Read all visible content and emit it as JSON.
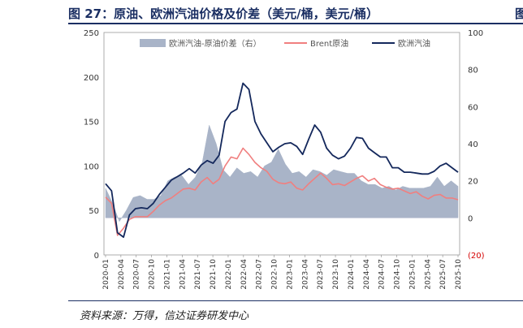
{
  "header": {
    "title": "图 27：原油、欧洲汽油价格及价差（美元/桶，美元/桶）",
    "right_mark": "图"
  },
  "footer": {
    "source": "资料来源：万得，信达证券研发中心"
  },
  "colors": {
    "spread": "#a9b4c8",
    "brent": "#f07f7f",
    "gasoline": "#14285c",
    "negative_label": "#d40000"
  },
  "chart_data": {
    "type": "line",
    "title": "",
    "legend_position": "top",
    "x_labels": [
      "2020-01",
      "2020-04",
      "2020-07",
      "2020-10",
      "2021-01",
      "2021-04",
      "2021-07",
      "2021-10",
      "2022-01",
      "2022-04",
      "2022-07",
      "2022-10",
      "2023-01",
      "2023-04",
      "2023-07",
      "2023-10",
      "2024-01",
      "2024-04",
      "2024-07",
      "2024-10",
      "2025-01",
      "2025-04",
      "2025-07",
      "2025-10"
    ],
    "y_left": {
      "min": 0,
      "max": 250,
      "ticks": [
        "0",
        "50",
        "100",
        "150",
        "200",
        "250"
      ]
    },
    "y_right": {
      "min": -20,
      "max": 100,
      "ticks": [
        "(20)",
        "0",
        "20",
        "40",
        "60",
        "80",
        "100"
      ]
    },
    "series": [
      {
        "name": "欧洲汽油-原油价差（右）",
        "kind": "area",
        "axis": "right",
        "values": [
          16,
          8,
          -2,
          4,
          11,
          12,
          10,
          10,
          12,
          20,
          22,
          23,
          18,
          22,
          30,
          50,
          40,
          26,
          22,
          27,
          24,
          25,
          22,
          28,
          30,
          37,
          29,
          24,
          25,
          22,
          26,
          25,
          23,
          26,
          25,
          24,
          24,
          20,
          18,
          18,
          16,
          17,
          15,
          17,
          16,
          16,
          16,
          17,
          22,
          17,
          20,
          17
        ]
      },
      {
        "name": "Brent原油",
        "kind": "line",
        "axis": "left",
        "values": [
          65,
          58,
          22,
          30,
          40,
          43,
          43,
          43,
          49,
          56,
          61,
          64,
          69,
          74,
          75,
          73,
          82,
          87,
          80,
          85,
          100,
          110,
          108,
          120,
          113,
          104,
          98,
          94,
          85,
          81,
          80,
          82,
          75,
          73,
          80,
          86,
          92,
          86,
          79,
          80,
          78,
          82,
          86,
          89,
          83,
          86,
          79,
          76,
          74,
          75,
          72,
          69,
          71,
          66,
          63,
          67,
          68,
          64,
          64,
          62
        ]
      },
      {
        "name": "欧洲汽油",
        "kind": "line",
        "axis": "left",
        "values": [
          80,
          72,
          25,
          20,
          45,
          52,
          53,
          52,
          58,
          68,
          76,
          84,
          88,
          92,
          97,
          92,
          101,
          106,
          103,
          112,
          150,
          160,
          164,
          193,
          186,
          150,
          136,
          126,
          116,
          121,
          125,
          126,
          122,
          113,
          130,
          146,
          138,
          120,
          112,
          108,
          111,
          120,
          132,
          131,
          120,
          115,
          110,
          110,
          98,
          98,
          93,
          93,
          92,
          91,
          91,
          94,
          100,
          103,
          98,
          93
        ]
      }
    ]
  }
}
